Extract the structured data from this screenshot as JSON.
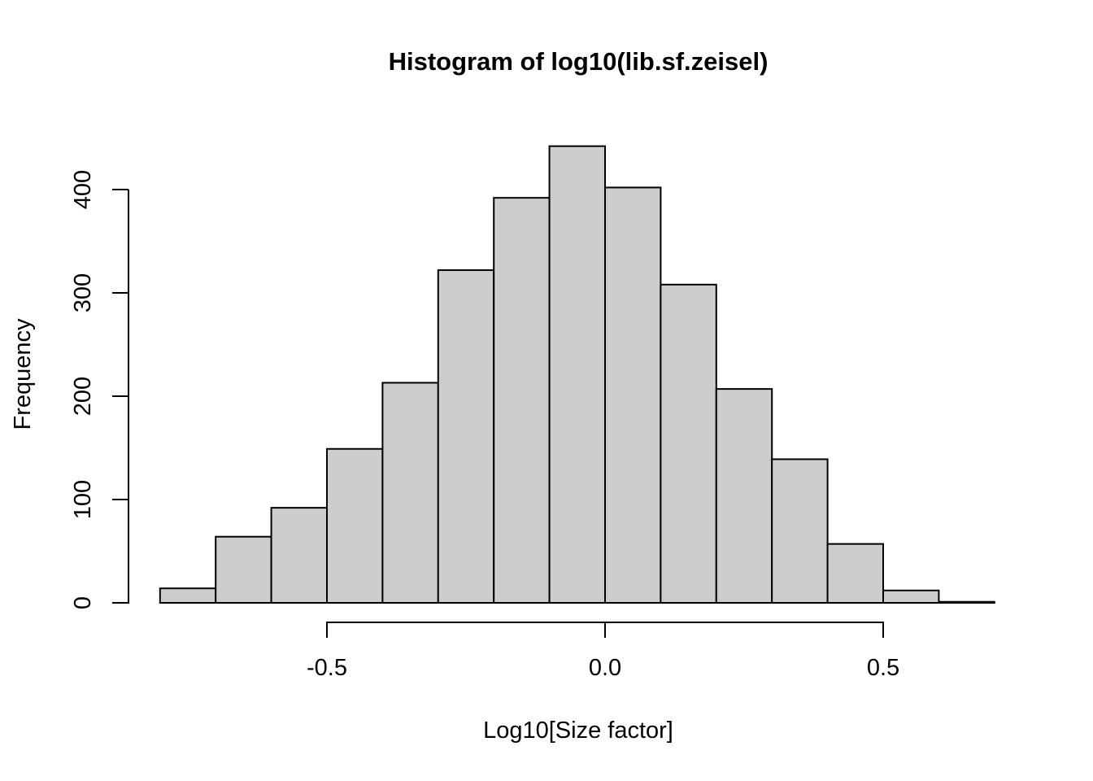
{
  "chart_data": {
    "type": "bar",
    "subtype": "histogram",
    "title": "Histogram of log10(lib.sf.zeisel)",
    "xlabel": "Log10[Size factor]",
    "ylabel": "Frequency",
    "bin_start": -0.8,
    "bin_width": 0.1,
    "bin_edges": [
      -0.8,
      -0.7,
      -0.6,
      -0.5,
      -0.4,
      -0.3,
      -0.2,
      -0.1,
      0.0,
      0.1,
      0.2,
      0.3,
      0.4,
      0.5,
      0.6,
      0.7
    ],
    "counts": [
      14,
      64,
      92,
      149,
      213,
      322,
      392,
      442,
      402,
      308,
      207,
      139,
      57,
      12,
      1
    ],
    "x_ticks": [
      {
        "value": -0.5,
        "label": "-0.5"
      },
      {
        "value": 0.0,
        "label": "0.0"
      },
      {
        "value": 0.5,
        "label": "0.5"
      }
    ],
    "y_ticks": [
      {
        "value": 0,
        "label": "0"
      },
      {
        "value": 100,
        "label": "100"
      },
      {
        "value": 200,
        "label": "200"
      },
      {
        "value": 300,
        "label": "300"
      },
      {
        "value": 400,
        "label": "400"
      }
    ],
    "x_axis_range": [
      -0.5,
      0.5
    ],
    "y_axis_range": [
      0,
      400
    ],
    "grid": "off",
    "legend": "none",
    "colors": {
      "bar_fill": "#cdcdcd",
      "bar_border": "#000000",
      "axis": "#000000",
      "text": "#000000",
      "background": "#ffffff"
    }
  }
}
